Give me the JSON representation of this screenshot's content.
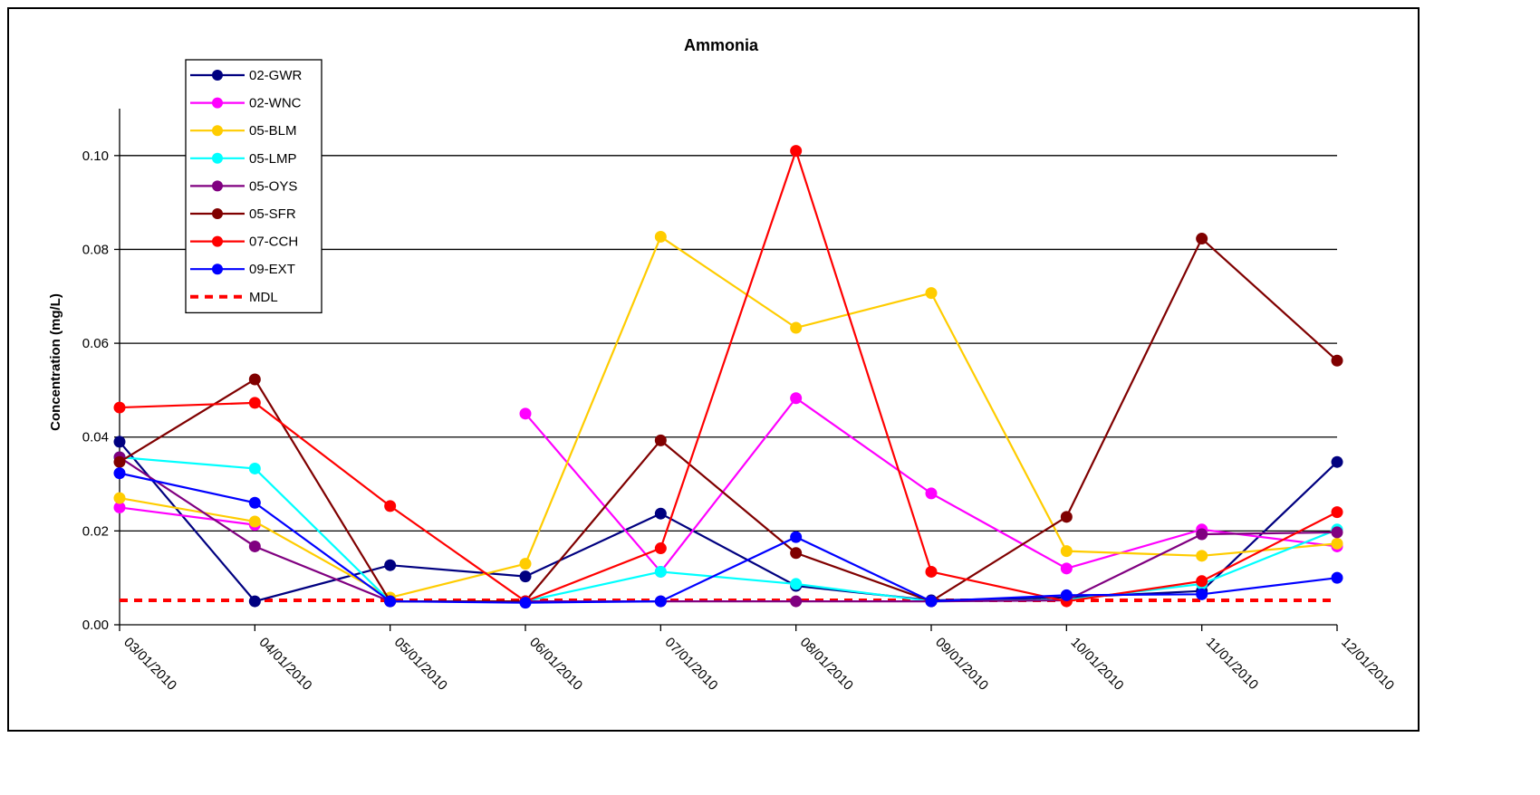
{
  "chart_data": {
    "type": "line",
    "title": "Ammonia",
    "xlabel": "",
    "ylabel": "Concentration (mg/L)",
    "ylim": [
      0,
      0.11
    ],
    "yticks": [
      0.0,
      0.02,
      0.04,
      0.06,
      0.08,
      0.1
    ],
    "ytick_labels": [
      "0.00",
      "0.02",
      "0.04",
      "0.06",
      "0.08",
      "0.10"
    ],
    "categories": [
      "03/01/2010",
      "04/01/2010",
      "05/01/2010",
      "06/01/2010",
      "07/01/2010",
      "08/01/2010",
      "09/01/2010",
      "10/01/2010",
      "11/01/2010",
      "12/01/2010"
    ],
    "grid": "horizontal",
    "legend_position": "top-left",
    "series": [
      {
        "name": "02-GWR",
        "color": "#000080",
        "values": [
          0.039,
          0.005,
          0.0127,
          0.0103,
          0.0237,
          0.0083,
          0.0052,
          0.0058,
          0.0072,
          0.0347
        ]
      },
      {
        "name": "02-WNC",
        "color": "#FF00FF",
        "values": [
          0.025,
          0.0213,
          null,
          0.045,
          0.0113,
          0.0483,
          0.028,
          0.012,
          0.0203,
          0.0167
        ]
      },
      {
        "name": "05-BLM",
        "color": "#FFCC00",
        "values": [
          0.027,
          0.022,
          0.0058,
          0.013,
          0.0827,
          0.0633,
          0.0707,
          0.0157,
          0.0147,
          0.0173
        ]
      },
      {
        "name": "05-LMP",
        "color": "#00FFFF",
        "values": [
          0.0357,
          0.0333,
          0.005,
          0.005,
          0.0113,
          0.0087,
          0.005,
          0.0053,
          0.0087,
          0.0203
        ]
      },
      {
        "name": "05-OYS",
        "color": "#800080",
        "values": [
          0.0357,
          0.0167,
          0.005,
          0.005,
          0.005,
          0.005,
          0.005,
          0.0052,
          0.0193,
          0.0197
        ]
      },
      {
        "name": "05-SFR",
        "color": "#800000",
        "values": [
          0.0347,
          0.0523,
          0.005,
          0.005,
          0.0393,
          0.0153,
          0.005,
          0.023,
          0.0823,
          0.0563
        ]
      },
      {
        "name": "07-CCH",
        "color": "#FF0000",
        "values": [
          0.0463,
          0.0473,
          0.0253,
          0.005,
          0.0163,
          0.101,
          0.0113,
          0.005,
          0.0093,
          0.024
        ]
      },
      {
        "name": "09-EXT",
        "color": "#0000FF",
        "values": [
          0.0323,
          0.026,
          0.005,
          0.0047,
          0.005,
          0.0187,
          0.005,
          0.0063,
          0.0065,
          0.01
        ]
      }
    ],
    "reference_lines": [
      {
        "name": "MDL",
        "color": "#FF0000",
        "style": "dashed",
        "value": 0.0052
      }
    ]
  }
}
